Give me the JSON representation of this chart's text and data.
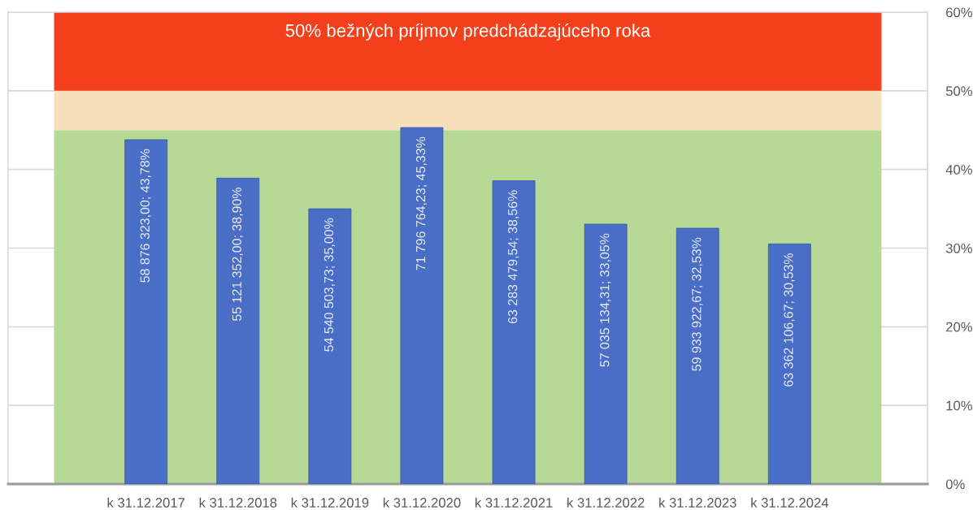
{
  "chart_data": {
    "type": "bar",
    "categories": [
      "k 31.12.2017",
      "k 31.12.2018",
      "k 31.12.2019",
      "k 31.12.2020",
      "k 31.12.2021",
      "k 31.12.2022",
      "k 31.12.2023",
      "k 31.12.2024"
    ],
    "values": [
      43.78,
      38.9,
      35.0,
      45.33,
      38.56,
      33.05,
      32.53,
      30.53
    ],
    "value_labels": [
      "58 876 323,00; 43,78%",
      "55 121 352,00; 38,90%",
      "54 540 503,73; 35,00%",
      "71 796 764,23; 45,33%",
      "63 283 479,54; 38,56%",
      "57 035 134,31; 33,05%",
      "59 933 922,67; 32,53%",
      "63 362 106,67; 30,53%"
    ],
    "color": "#4a6dc5",
    "ylim": [
      0,
      60
    ],
    "yticks": [
      {
        "value": 0,
        "label": "0%"
      },
      {
        "value": 10,
        "label": "10%"
      },
      {
        "value": 20,
        "label": "20%"
      },
      {
        "value": 30,
        "label": "30%"
      },
      {
        "value": 40,
        "label": "40%"
      },
      {
        "value": 50,
        "label": "50%"
      },
      {
        "value": 60,
        "label": "60%"
      }
    ],
    "grid": "y",
    "bands": [
      {
        "axis": "y",
        "from": 0,
        "to": 45,
        "color": "#b6da96"
      },
      {
        "axis": "y",
        "from": 45,
        "to": 50,
        "color": "#f7dfbc"
      },
      {
        "axis": "y",
        "from": 50,
        "to": 60,
        "color": "#f3401b",
        "label": "50% bežných príjmov predchádzajúceho roka"
      }
    ]
  }
}
